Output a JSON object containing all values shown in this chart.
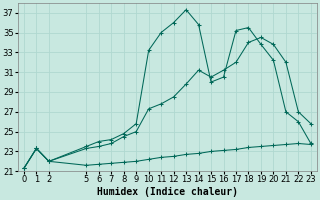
{
  "background_color": "#c8e8e0",
  "grid_color": "#b0d8d0",
  "line_color": "#006858",
  "xlabel": "Humidex (Indice chaleur)",
  "ylim": [
    21,
    38
  ],
  "xlim": [
    -0.5,
    23.5
  ],
  "yticks": [
    21,
    23,
    25,
    27,
    29,
    31,
    33,
    35,
    37
  ],
  "xticks": [
    0,
    1,
    2,
    5,
    6,
    7,
    8,
    9,
    10,
    11,
    12,
    13,
    14,
    15,
    16,
    17,
    18,
    19,
    20,
    21,
    22,
    23
  ],
  "line1_x": [
    0,
    1,
    2,
    5,
    6,
    7,
    8,
    9,
    10,
    11,
    12,
    13,
    14,
    15,
    16,
    17,
    18,
    19,
    20,
    21,
    22,
    23
  ],
  "line1_y": [
    21.3,
    23.3,
    22.0,
    21.6,
    21.7,
    21.8,
    21.9,
    22.0,
    22.2,
    22.4,
    22.5,
    22.7,
    22.8,
    23.0,
    23.1,
    23.2,
    23.4,
    23.5,
    23.6,
    23.7,
    23.8,
    23.7
  ],
  "line2_x": [
    0,
    1,
    2,
    5,
    6,
    7,
    8,
    9,
    10,
    11,
    12,
    13,
    14,
    15,
    16,
    17,
    18,
    19,
    20,
    21,
    22,
    23
  ],
  "line2_y": [
    21.3,
    23.3,
    22.0,
    23.5,
    24.0,
    24.2,
    24.8,
    25.8,
    33.2,
    35.0,
    36.0,
    37.3,
    35.8,
    30.0,
    30.5,
    35.2,
    35.5,
    33.8,
    32.2,
    27.0,
    26.0,
    23.8
  ],
  "line3_x": [
    0,
    1,
    2,
    5,
    6,
    7,
    8,
    9,
    10,
    11,
    12,
    13,
    14,
    15,
    16,
    17,
    18,
    19,
    20,
    21,
    22,
    23
  ],
  "line3_y": [
    21.3,
    23.3,
    22.0,
    23.3,
    23.5,
    23.8,
    24.5,
    25.0,
    27.3,
    27.8,
    28.5,
    29.8,
    31.2,
    30.5,
    31.2,
    32.0,
    34.0,
    34.5,
    33.8,
    32.0,
    27.0,
    25.8
  ],
  "xlabel_fontsize": 7,
  "tick_fontsize": 6
}
